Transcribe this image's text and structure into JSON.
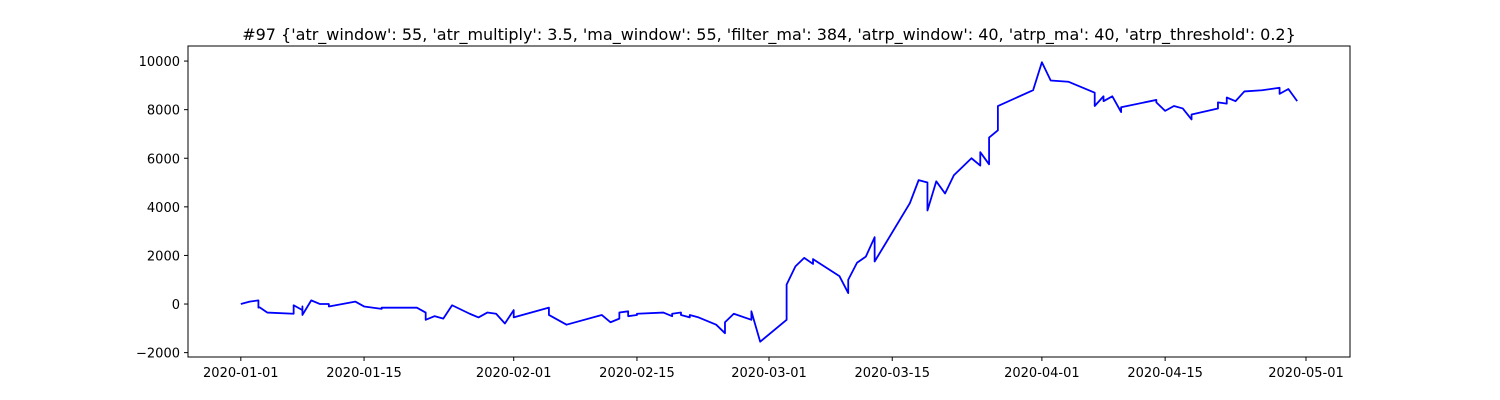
{
  "chart_data": {
    "type": "line",
    "title": "#97 {'atr_window': 55, 'atr_multiply': 3.5, 'ma_window': 55, 'filter_ma': 384, 'atrp_window': 40, 'atrp_ma': 40, 'atrp_threshold': 0.2}",
    "x": [
      "2020-01-01",
      "2020-01-02",
      "2020-01-03",
      "2020-01-03",
      "2020-01-03",
      "2020-01-04",
      "2020-01-07",
      "2020-01-07",
      "2020-01-08",
      "2020-01-08",
      "2020-01-08",
      "2020-01-09",
      "2020-01-10",
      "2020-01-11",
      "2020-01-11",
      "2020-01-14",
      "2020-01-15",
      "2020-01-17",
      "2020-01-17",
      "2020-01-21",
      "2020-01-22",
      "2020-01-22",
      "2020-01-22",
      "2020-01-23",
      "2020-01-24",
      "2020-01-25",
      "2020-01-27",
      "2020-01-28",
      "2020-01-29",
      "2020-01-30",
      "2020-01-31",
      "2020-02-01",
      "2020-02-01",
      "2020-02-05",
      "2020-02-05",
      "2020-02-06",
      "2020-02-07",
      "2020-02-11",
      "2020-02-12",
      "2020-02-13",
      "2020-02-13",
      "2020-02-14",
      "2020-02-14",
      "2020-02-15",
      "2020-02-15",
      "2020-02-18",
      "2020-02-19",
      "2020-02-19",
      "2020-02-20",
      "2020-02-20",
      "2020-02-21",
      "2020-02-21",
      "2020-02-22",
      "2020-02-24",
      "2020-02-25",
      "2020-02-25",
      "2020-02-26",
      "2020-02-28",
      "2020-02-28",
      "2020-02-29",
      "2020-03-03",
      "2020-03-03",
      "2020-03-04",
      "2020-03-05",
      "2020-03-06",
      "2020-03-06",
      "2020-03-09",
      "2020-03-10",
      "2020-03-10",
      "2020-03-11",
      "2020-03-12",
      "2020-03-13",
      "2020-03-13",
      "2020-03-17",
      "2020-03-18",
      "2020-03-19",
      "2020-03-19",
      "2020-03-20",
      "2020-03-21",
      "2020-03-22",
      "2020-03-24",
      "2020-03-25",
      "2020-03-25",
      "2020-03-26",
      "2020-03-26",
      "2020-03-26",
      "2020-03-27",
      "2020-03-27",
      "2020-03-31",
      "2020-04-01",
      "2020-04-02",
      "2020-04-04",
      "2020-04-07",
      "2020-04-07",
      "2020-04-08",
      "2020-04-08",
      "2020-04-09",
      "2020-04-10",
      "2020-04-10",
      "2020-04-14",
      "2020-04-14",
      "2020-04-15",
      "2020-04-16",
      "2020-04-17",
      "2020-04-18",
      "2020-04-18",
      "2020-04-21",
      "2020-04-21",
      "2020-04-22",
      "2020-04-22",
      "2020-04-23",
      "2020-04-24",
      "2020-04-26",
      "2020-04-28",
      "2020-04-28",
      "2020-04-29",
      "2020-04-30"
    ],
    "series": [
      {
        "color": "#0000ff",
        "values": [
          0,
          100,
          150,
          -150,
          -100,
          -350,
          -400,
          -50,
          -250,
          -100,
          -450,
          150,
          0,
          0,
          -100,
          100,
          -100,
          -200,
          -150,
          -150,
          -350,
          -450,
          -650,
          -500,
          -600,
          -50,
          -400,
          -550,
          -350,
          -400,
          -800,
          -250,
          -550,
          -150,
          -450,
          -650,
          -850,
          -450,
          -750,
          -600,
          -350,
          -300,
          -500,
          -450,
          -400,
          -350,
          -500,
          -400,
          -350,
          -450,
          -550,
          -450,
          -550,
          -850,
          -1200,
          -750,
          -400,
          -650,
          -300,
          -1550,
          -650,
          800,
          1550,
          1900,
          1650,
          1850,
          1150,
          450,
          1000,
          1700,
          1950,
          2750,
          1750,
          4150,
          5100,
          5000,
          3850,
          5050,
          4550,
          5300,
          6000,
          5700,
          6250,
          5750,
          6000,
          6850,
          7150,
          8150,
          8800,
          9950,
          9200,
          9150,
          8700,
          8150,
          8550,
          8350,
          8550,
          7900,
          8100,
          8400,
          8300,
          7950,
          8150,
          8050,
          7600,
          7800,
          8050,
          8300,
          8250,
          8500,
          8350,
          8750,
          8800,
          8900,
          8650,
          8850,
          8350
        ]
      }
    ],
    "xlim": [
      "2019-12-26",
      "2020-05-06"
    ],
    "xticks": [
      "2020-01-01",
      "2020-01-15",
      "2020-02-01",
      "2020-02-15",
      "2020-03-01",
      "2020-03-15",
      "2020-04-01",
      "2020-04-15",
      "2020-05-01"
    ],
    "ylim": [
      -2180,
      10620
    ],
    "yticks": [
      {
        "value": -2000,
        "label": "−2000"
      },
      0,
      2000,
      4000,
      6000,
      8000,
      10000
    ]
  }
}
